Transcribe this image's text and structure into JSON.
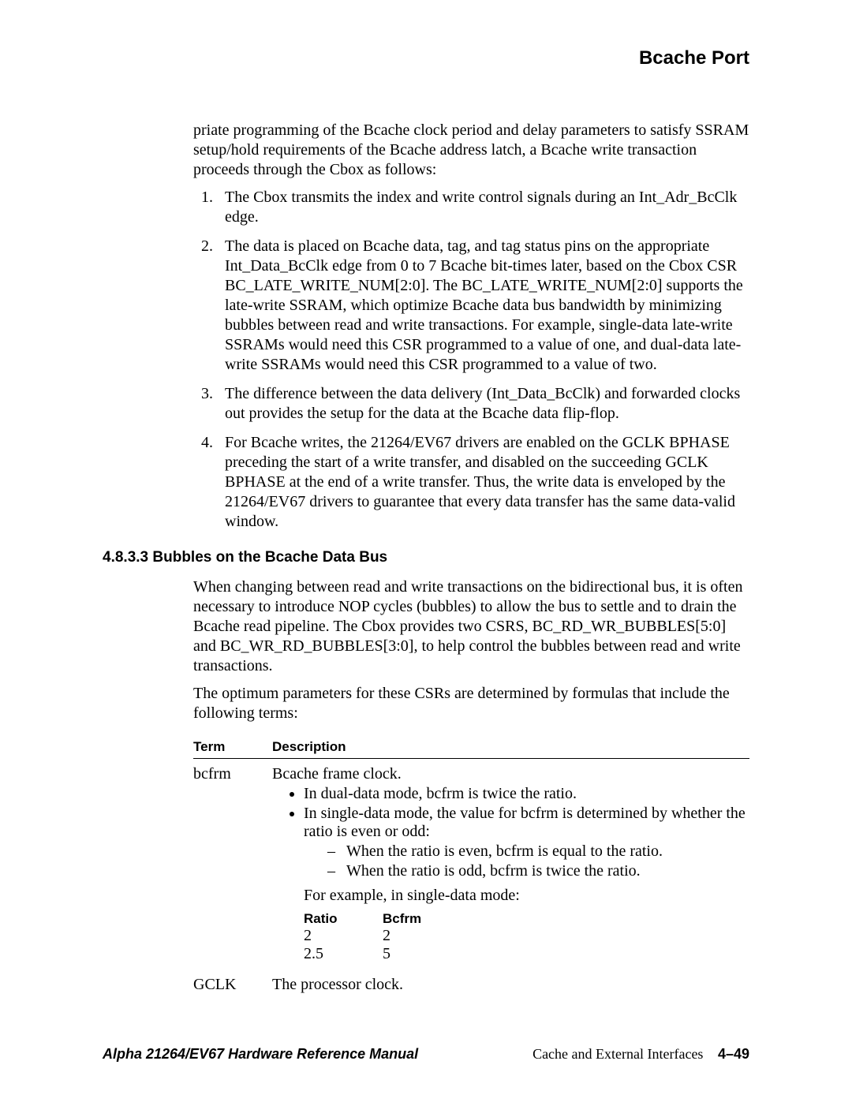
{
  "header": {
    "title": "Bcache Port"
  },
  "intro_para": "priate programming of the Bcache clock period and delay parameters to satisfy SSRAM setup/hold requirements of the Bcache address latch, a Bcache write transaction proceeds through the Cbox as follows:",
  "ol": {
    "i1": "The Cbox transmits the index and write control signals during an Int_Adr_BcClk edge.",
    "i2": "The data is placed on Bcache data, tag, and tag status pins on the appropriate Int_Data_BcClk edge from 0 to 7 Bcache bit-times later, based on the Cbox CSR BC_LATE_WRITE_NUM[2:0]. The BC_LATE_WRITE_NUM[2:0] supports the late-write SSRAM, which optimize Bcache data bus bandwidth by minimizing bubbles between read and write transactions. For example, single-data late-write SSRAMs would need this CSR programmed to a value of one, and dual-data late-write SSRAMs would need this CSR programmed to a value of two.",
    "i3": "The difference between the data delivery (Int_Data_BcClk) and forwarded clocks out provides the setup for the data at the Bcache data flip-flop.",
    "i4": "For Bcache writes, the 21264/EV67 drivers are enabled on the GCLK BPHASE preceding the start of a write transfer, and disabled on the succeeding GCLK BPHASE at the end of a write transfer. Thus, the write data is enveloped by the 21264/EV67 drivers to guarantee that every data transfer has the same data-valid window."
  },
  "subsection": {
    "num_title": "4.8.3.3  Bubbles on the Bcache Data Bus",
    "p1": "When changing between read and write transactions on the bidirectional bus, it is often necessary to introduce NOP cycles (bubbles) to allow the bus to settle and to drain the Bcache read pipeline. The Cbox provides two CSRS, BC_RD_WR_BUBBLES[5:0] and BC_WR_RD_BUBBLES[3:0], to help control the bubbles between read and write transactions.",
    "p2": "The optimum parameters for these CSRs are determined by formulas that include the following terms:"
  },
  "table": {
    "head_term": "Term",
    "head_desc": "Description",
    "row1": {
      "term": "bcfrm",
      "line1": "Bcache frame clock.",
      "bullet1": "In dual-data mode, bcfrm is twice the ratio.",
      "bullet2": "In single-data mode, the value for bcfrm is determined by whether the ratio is even or odd:",
      "dash1": "When the ratio is even, bcfrm is equal to the ratio.",
      "dash2": "When the ratio is odd, bcfrm is twice the ratio.",
      "example_lead": "For example, in single-data mode:",
      "ratio_head1": "Ratio",
      "ratio_head2": "Bcfrm",
      "r1c1": "2",
      "r1c2": "2",
      "r2c1": "2.5",
      "r2c2": "5"
    },
    "row2": {
      "term": "GCLK",
      "desc": "The processor clock."
    }
  },
  "footer": {
    "left": "Alpha 21264/EV67 Hardware Reference Manual",
    "right_text": "Cache and External Interfaces",
    "page": "4–49"
  }
}
